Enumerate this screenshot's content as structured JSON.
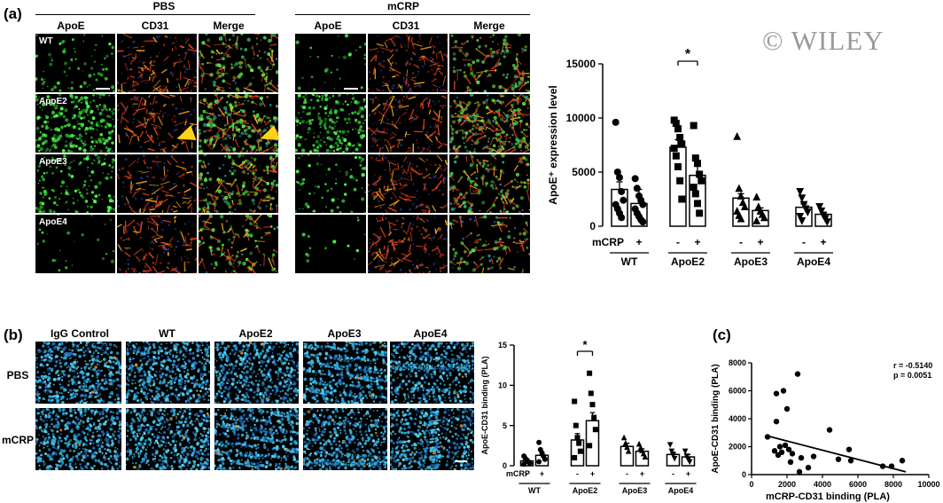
{
  "watermark": "© WILEY",
  "panel_a": {
    "letter": "(a)",
    "conditions": [
      "PBS",
      "mCRP"
    ],
    "channels": [
      "ApoE",
      "CD31",
      "Merge"
    ],
    "rows": [
      "WT",
      "ApoE2",
      "ApoE3",
      "ApoE4"
    ]
  },
  "panel_b": {
    "letter": "(b)",
    "columns": [
      "IgG Control",
      "WT",
      "ApoE2",
      "ApoE3",
      "ApoE4"
    ],
    "rows": [
      "PBS",
      "mCRP"
    ]
  },
  "panel_c": {
    "letter": "(c)",
    "stats": [
      "r = -0.5140",
      "p = 0.0051"
    ]
  },
  "chart_data": [
    {
      "id": "a-bar",
      "type": "bar",
      "ylabel": "ApoE⁺ expression level",
      "ylim": [
        0,
        15000
      ],
      "yticks": [
        0,
        5000,
        10000,
        15000
      ],
      "treatment_label": "mCRP",
      "treatment_signs": [
        "-",
        "+"
      ],
      "groups": [
        "WT",
        "ApoE2",
        "ApoE3",
        "ApoE4"
      ],
      "series": [
        {
          "name": "-",
          "values": [
            3400,
            7300,
            2600,
            1750
          ]
        },
        {
          "name": "+",
          "values": [
            2100,
            4700,
            1450,
            1100
          ]
        }
      ],
      "errors": [
        [
          700,
          1300
        ],
        [
          700,
          900
        ],
        [
          400,
          250
        ],
        [
          300,
          200
        ]
      ],
      "markers": [
        "circle",
        "square",
        "triangle",
        "triangle-down"
      ],
      "significance": {
        "group": "ApoE2",
        "label": "*"
      },
      "points": [
        [
          [
            9600,
            5000,
            4500,
            3200,
            2400,
            2000,
            1600,
            1200,
            800
          ],
          [
            4400,
            3500,
            2800,
            2400,
            2000,
            1600,
            1200,
            900,
            600,
            400
          ]
        ],
        [
          [
            9800,
            9500,
            9000,
            8200,
            7600,
            7200,
            6500,
            5500,
            4200,
            2500
          ],
          [
            9300,
            6300,
            5800,
            4800,
            4200,
            3600,
            3000,
            2100,
            1200
          ]
        ],
        [
          [
            8300,
            3500,
            2800,
            2200,
            1800,
            1400,
            1000,
            700
          ],
          [
            2700,
            1800,
            1400,
            1100,
            800,
            500
          ]
        ],
        [
          [
            3200,
            2600,
            2000,
            1600,
            1300,
            900,
            500
          ],
          [
            1800,
            1400,
            1000,
            700,
            400
          ]
        ]
      ]
    },
    {
      "id": "b-bar",
      "type": "bar",
      "ylabel": "ApoE-CD31 binding (PLA)",
      "ylim": [
        0,
        15
      ],
      "yticks": [
        0,
        5,
        10,
        15
      ],
      "treatment_label": "mCRP",
      "treatment_signs": [
        "-",
        "+"
      ],
      "groups": [
        "WT",
        "ApoE2",
        "ApoE3",
        "ApoE4"
      ],
      "series": [
        {
          "name": "-",
          "values": [
            0.6,
            3.2,
            2.4,
            1.4
          ]
        },
        {
          "name": "+",
          "values": [
            1.3,
            5.6,
            1.8,
            1.1
          ]
        }
      ],
      "errors": [
        [
          0.2,
          0.3
        ],
        [
          0.8,
          1.0
        ],
        [
          0.4,
          0.3
        ],
        [
          0.3,
          0.3
        ]
      ],
      "markers": [
        "circle",
        "square",
        "triangle",
        "triangle-down"
      ],
      "significance": {
        "group": "ApoE2",
        "label": "*"
      },
      "points": [
        [
          [
            1.2,
            0.9,
            0.7,
            0.5,
            0.3,
            0.2
          ],
          [
            2.9,
            2.0,
            1.6,
            1.2,
            0.8,
            0.5
          ]
        ],
        [
          [
            8.0,
            5.0,
            3.5,
            2.8,
            1.8,
            1.0
          ],
          [
            11.5,
            9.0,
            7.6,
            6.0,
            4.5,
            2.5
          ]
        ],
        [
          [
            3.5,
            2.8,
            2.3,
            1.8
          ],
          [
            2.7,
            2.2,
            1.9,
            1.5,
            1.1
          ]
        ],
        [
          [
            2.6,
            1.8,
            1.3,
            0.9
          ],
          [
            1.8,
            1.2,
            0.8,
            0.5
          ]
        ]
      ]
    },
    {
      "id": "c-scatter",
      "type": "scatter",
      "xlabel": "mCRP-CD31 binding (PLA)",
      "ylabel": "ApoE-CD31 binding (PLA)",
      "xlim": [
        0,
        10000
      ],
      "ylim": [
        0,
        8000
      ],
      "xticks": [
        0,
        2000,
        4000,
        6000,
        8000,
        10000
      ],
      "yticks": [
        0,
        2000,
        4000,
        6000,
        8000
      ],
      "points": [
        [
          900,
          2700
        ],
        [
          1300,
          1700
        ],
        [
          1400,
          5800
        ],
        [
          1400,
          3800
        ],
        [
          1500,
          1400
        ],
        [
          1700,
          1600
        ],
        [
          1800,
          6000
        ],
        [
          1900,
          2100
        ],
        [
          2000,
          4700
        ],
        [
          2100,
          1800
        ],
        [
          2200,
          900
        ],
        [
          2300,
          1500
        ],
        [
          2600,
          7200
        ],
        [
          2700,
          200
        ],
        [
          2800,
          1200
        ],
        [
          3200,
          500
        ],
        [
          3500,
          1300
        ],
        [
          4400,
          3200
        ],
        [
          4900,
          1100
        ],
        [
          5500,
          1800
        ],
        [
          5600,
          1000
        ],
        [
          7400,
          600
        ],
        [
          7900,
          600
        ],
        [
          8500,
          1000
        ],
        [
          1600,
          2000
        ]
      ],
      "fit": {
        "x": [
          800,
          8700
        ],
        "y": [
          2800,
          200
        ]
      }
    }
  ]
}
